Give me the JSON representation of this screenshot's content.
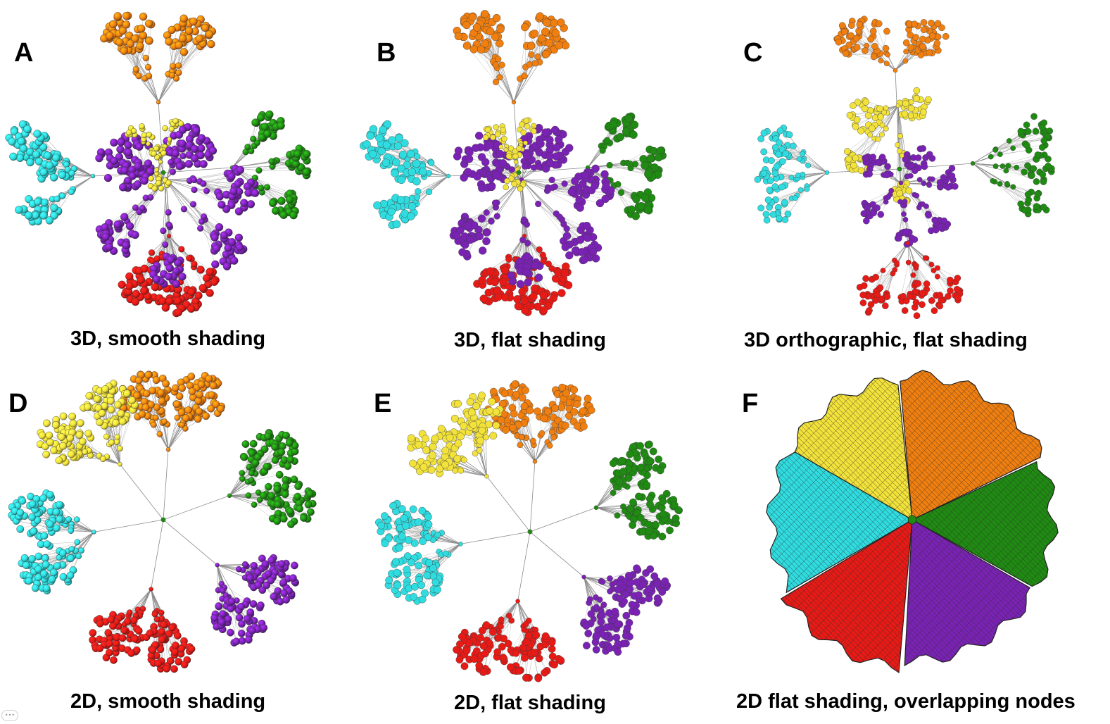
{
  "palette": {
    "orange": "#f07f10",
    "yellow": "#f2e23a",
    "purple": "#7a22b4",
    "green": "#1f8b12",
    "cyan": "#2fdde0",
    "red": "#e81a16",
    "edge": "#8a8a8a",
    "outline": "#3a3a3a"
  },
  "panels": [
    {
      "id": "A",
      "letter": "A",
      "caption": "3D, smooth shading"
    },
    {
      "id": "B",
      "letter": "B",
      "caption": "3D, flat shading"
    },
    {
      "id": "C",
      "letter": "C",
      "caption": "3D orthographic, flat shading"
    },
    {
      "id": "D",
      "letter": "D",
      "caption": "2D, smooth shading"
    },
    {
      "id": "E",
      "letter": "E",
      "caption": "2D, flat shading"
    },
    {
      "id": "F",
      "letter": "F",
      "caption": "2D flat shading, overlapping nodes"
    }
  ],
  "footer_icon": "pagination-dots-icon"
}
